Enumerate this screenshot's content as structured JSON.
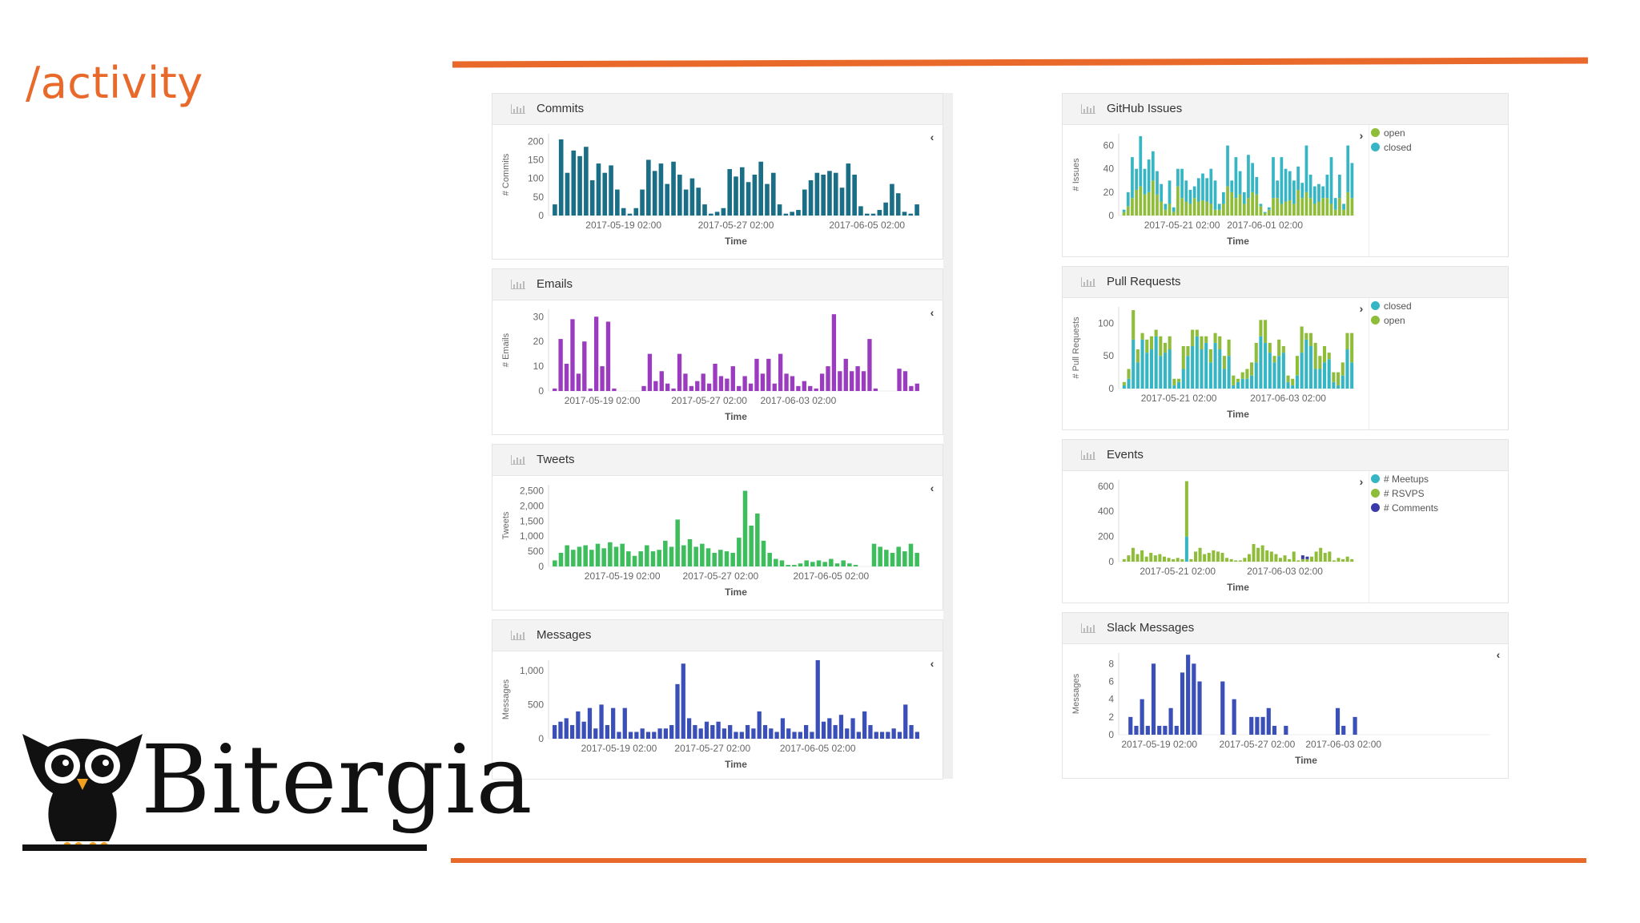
{
  "slide": {
    "title": "/activity",
    "brand": "Bitergia"
  },
  "colors": {
    "accent": "#e8692a",
    "commits": "#1a6e86",
    "emails": "#9b3cc0",
    "tweets": "#3dbd5c",
    "messages": "#3a4fb8",
    "open": "#8fbd3a",
    "closed": "#36b6c4",
    "meetups": "#36b6c4",
    "rsvps": "#8fbd3a",
    "comments": "#3a3aa8",
    "slack": "#3a4fb8"
  },
  "panels": {
    "commits": {
      "title": "Commits",
      "toggle": "‹",
      "icon": "bar-chart-icon"
    },
    "emails": {
      "title": "Emails",
      "toggle": "‹",
      "icon": "bar-chart-icon"
    },
    "tweets": {
      "title": "Tweets",
      "toggle": "‹",
      "icon": "bar-chart-icon"
    },
    "messages": {
      "title": "Messages",
      "toggle": "‹",
      "icon": "bar-chart-icon"
    },
    "issues": {
      "title": "GitHub Issues",
      "toggle": "›",
      "icon": "bar-chart-icon",
      "legend": [
        "open",
        "closed"
      ]
    },
    "prs": {
      "title": "Pull Requests",
      "toggle": "›",
      "icon": "bar-chart-icon",
      "legend": [
        "closed",
        "open"
      ]
    },
    "events": {
      "title": "Events",
      "toggle": "›",
      "icon": "bar-chart-icon",
      "legend": [
        "# Meetups",
        "# RSVPS",
        "# Comments"
      ]
    },
    "slack": {
      "title": "Slack Messages",
      "toggle": "‹",
      "icon": "bar-chart-icon"
    }
  },
  "chart_data": [
    {
      "id": "commits",
      "type": "bar",
      "ylabel": "# Commits",
      "xlabel": "Time",
      "ylim": [
        0,
        220
      ],
      "yticks": [
        "0",
        "50",
        "100",
        "150",
        "200"
      ],
      "xticks": [
        {
          "label": "2017-05-19 02:00",
          "index": 11
        },
        {
          "label": "2017-05-27 02:00",
          "index": 29
        },
        {
          "label": "2017-06-05 02:00",
          "index": 50
        }
      ],
      "series": [
        {
          "name": "Commits",
          "color": "#1a6e86",
          "values": [
            30,
            205,
            115,
            175,
            160,
            185,
            95,
            140,
            115,
            135,
            70,
            20,
            5,
            20,
            70,
            150,
            120,
            140,
            85,
            145,
            110,
            70,
            100,
            75,
            30,
            5,
            10,
            20,
            125,
            105,
            130,
            90,
            110,
            145,
            85,
            115,
            30,
            5,
            10,
            15,
            70,
            95,
            115,
            110,
            120,
            115,
            75,
            140,
            110,
            25,
            5,
            5,
            15,
            35,
            85,
            60,
            10,
            5,
            30
          ]
        }
      ]
    },
    {
      "id": "emails",
      "type": "bar",
      "ylabel": "# Emails",
      "xlabel": "Time",
      "ylim": [
        0,
        33
      ],
      "yticks": [
        "0",
        "10",
        "20",
        "30"
      ],
      "xticks": [
        {
          "label": "2017-05-19 02:00",
          "index": 8
        },
        {
          "label": "2017-05-27 02:00",
          "index": 26
        },
        {
          "label": "2017-06-03 02:00",
          "index": 41
        }
      ],
      "series": [
        {
          "name": "Emails",
          "color": "#9b3cc0",
          "values": [
            1,
            21,
            11,
            29,
            7,
            20,
            1,
            30,
            10,
            28,
            1,
            0,
            0,
            0,
            0,
            2,
            15,
            4,
            8,
            3,
            1,
            15,
            7,
            2,
            4,
            7,
            3,
            11,
            6,
            5,
            10,
            2,
            6,
            3,
            13,
            7,
            13,
            3,
            15,
            7,
            6,
            2,
            4,
            2,
            1,
            7,
            10,
            31,
            8,
            13,
            8,
            10,
            8,
            21,
            1,
            0,
            0,
            0,
            9,
            8,
            2,
            3
          ]
        }
      ]
    },
    {
      "id": "tweets",
      "type": "bar",
      "ylabel": "Tweets",
      "xlabel": "Time",
      "ylim": [
        0,
        2700
      ],
      "yticks": [
        "0",
        "500",
        "1,000",
        "1,500",
        "2,000",
        "2,500"
      ],
      "xticks": [
        {
          "label": "2017-05-19 02:00",
          "index": 11
        },
        {
          "label": "2017-05-27 02:00",
          "index": 27
        },
        {
          "label": "2017-06-05 02:00",
          "index": 45
        }
      ],
      "series": [
        {
          "name": "Tweets",
          "color": "#3dbd5c",
          "values": [
            200,
            450,
            700,
            550,
            650,
            700,
            550,
            750,
            600,
            800,
            650,
            750,
            500,
            350,
            500,
            700,
            500,
            550,
            850,
            650,
            1550,
            700,
            900,
            650,
            750,
            600,
            450,
            550,
            500,
            450,
            950,
            2500,
            1350,
            1750,
            850,
            450,
            250,
            200,
            50,
            50,
            100,
            200,
            150,
            200,
            150,
            250,
            100,
            200,
            100,
            50,
            0,
            0,
            750,
            650,
            550,
            450,
            650,
            500,
            750,
            450
          ]
        }
      ]
    },
    {
      "id": "messages",
      "type": "bar",
      "ylabel": "Messages",
      "xlabel": "Time",
      "ylim": [
        0,
        1150
      ],
      "yticks": [
        "0",
        "500",
        "1,000"
      ],
      "xticks": [
        {
          "label": "2017-05-19 02:00",
          "index": 11
        },
        {
          "label": "2017-05-27 02:00",
          "index": 27
        },
        {
          "label": "2017-06-05 02:00",
          "index": 45
        }
      ],
      "series": [
        {
          "name": "Messages",
          "color": "#3a4fb8",
          "values": [
            200,
            250,
            300,
            200,
            400,
            250,
            450,
            150,
            500,
            200,
            450,
            100,
            450,
            100,
            100,
            150,
            100,
            100,
            150,
            150,
            200,
            800,
            1100,
            300,
            200,
            150,
            250,
            200,
            250,
            150,
            200,
            100,
            100,
            200,
            150,
            400,
            200,
            150,
            100,
            300,
            150,
            100,
            100,
            200,
            100,
            1150,
            250,
            300,
            200,
            350,
            150,
            300,
            100,
            400,
            200,
            100,
            100,
            100,
            150,
            100,
            500,
            200,
            100
          ]
        }
      ]
    },
    {
      "id": "issues",
      "type": "bar-stacked",
      "ylabel": "# Issues",
      "xlabel": "Time",
      "ylim": [
        0,
        70
      ],
      "yticks": [
        "0",
        "20",
        "40",
        "60"
      ],
      "xticks": [
        {
          "label": "2017-05-21 02:00",
          "index": 14
        },
        {
          "label": "2017-06-01 02:00",
          "index": 34
        }
      ],
      "series": [
        {
          "name": "open",
          "color": "#8fbd3a",
          "values": [
            3,
            8,
            15,
            22,
            25,
            18,
            20,
            30,
            18,
            12,
            5,
            10,
            3,
            25,
            15,
            12,
            10,
            15,
            12,
            13,
            12,
            10,
            5,
            5,
            10,
            25,
            20,
            15,
            18,
            10,
            15,
            20,
            18,
            8,
            2,
            5,
            15,
            15,
            10,
            12,
            13,
            10,
            22,
            15,
            20,
            15,
            10,
            12,
            15,
            15,
            10,
            5,
            15,
            5,
            20,
            15
          ]
        },
        {
          "name": "closed",
          "color": "#36b6c4",
          "values": [
            2,
            12,
            35,
            18,
            43,
            22,
            28,
            25,
            20,
            15,
            5,
            20,
            4,
            15,
            25,
            18,
            12,
            10,
            20,
            23,
            20,
            30,
            25,
            5,
            10,
            35,
            10,
            35,
            20,
            10,
            37,
            25,
            15,
            2,
            1,
            2,
            35,
            15,
            40,
            28,
            25,
            20,
            20,
            13,
            40,
            20,
            15,
            15,
            10,
            20,
            40,
            10,
            20,
            5,
            40,
            30
          ]
        }
      ]
    },
    {
      "id": "prs",
      "type": "bar-stacked",
      "ylabel": "# Pull Requests",
      "xlabel": "Time",
      "ylim": [
        0,
        125
      ],
      "yticks": [
        "0",
        "50",
        "100"
      ],
      "xticks": [
        {
          "label": "2017-05-21 02:00",
          "index": 12
        },
        {
          "label": "2017-06-03 02:00",
          "index": 36
        }
      ],
      "series": [
        {
          "name": "closed",
          "color": "#36b6c4",
          "values": [
            5,
            15,
            75,
            40,
            75,
            55,
            60,
            80,
            50,
            55,
            60,
            5,
            10,
            30,
            50,
            65,
            80,
            60,
            70,
            40,
            70,
            60,
            30,
            50,
            5,
            10,
            15,
            15,
            20,
            40,
            80,
            70,
            55,
            40,
            50,
            55,
            10,
            5,
            20,
            55,
            75,
            65,
            30,
            30,
            40,
            45,
            10,
            5,
            20,
            60,
            40
          ]
        },
        {
          "name": "open",
          "color": "#8fbd3a",
          "values": [
            5,
            15,
            45,
            20,
            10,
            20,
            20,
            10,
            30,
            15,
            20,
            10,
            5,
            35,
            15,
            25,
            10,
            20,
            10,
            20,
            15,
            20,
            20,
            25,
            15,
            5,
            10,
            15,
            20,
            30,
            25,
            35,
            15,
            10,
            25,
            10,
            10,
            10,
            30,
            40,
            10,
            20,
            40,
            20,
            25,
            10,
            15,
            20,
            20,
            25,
            45
          ]
        }
      ]
    },
    {
      "id": "events",
      "type": "bar-stacked",
      "ylabel": "",
      "xlabel": "Time",
      "ylim": [
        0,
        650
      ],
      "yticks": [
        "0",
        "200",
        "400",
        "600"
      ],
      "xticks": [
        {
          "label": "2017-05-21 02:00",
          "index": 12
        },
        {
          "label": "2017-06-03 02:00",
          "index": 36
        }
      ],
      "series": [
        {
          "name": "# Meetups",
          "color": "#36b6c4",
          "values": [
            0,
            0,
            0,
            0,
            0,
            0,
            0,
            0,
            0,
            0,
            0,
            0,
            0,
            0,
            200,
            0,
            0,
            0,
            0,
            0,
            0,
            0,
            0,
            0,
            0,
            0,
            0,
            0,
            0,
            0,
            0,
            0,
            0,
            0,
            0,
            0,
            0,
            0,
            0,
            0,
            0,
            0,
            0,
            0,
            0,
            0,
            0,
            0,
            0,
            0,
            0,
            0
          ]
        },
        {
          "name": "# RSVPS",
          "color": "#8fbd3a",
          "values": [
            20,
            50,
            110,
            60,
            90,
            40,
            70,
            50,
            60,
            40,
            30,
            20,
            30,
            20,
            440,
            20,
            80,
            110,
            60,
            70,
            90,
            80,
            70,
            30,
            20,
            10,
            10,
            30,
            60,
            140,
            110,
            130,
            90,
            80,
            60,
            30,
            50,
            20,
            80,
            10,
            20,
            20,
            40,
            80,
            110,
            70,
            80,
            10,
            30,
            20,
            40,
            20
          ]
        },
        {
          "name": "# Comments",
          "color": "#3a3aa8",
          "values": [
            0,
            0,
            0,
            0,
            0,
            0,
            0,
            0,
            0,
            0,
            0,
            0,
            0,
            0,
            0,
            0,
            0,
            0,
            0,
            0,
            0,
            0,
            0,
            0,
            0,
            0,
            0,
            0,
            0,
            0,
            0,
            0,
            0,
            0,
            0,
            0,
            0,
            0,
            0,
            0,
            30,
            20,
            0,
            0,
            0,
            0,
            0,
            0,
            0,
            0,
            0,
            0
          ]
        }
      ]
    },
    {
      "id": "slack",
      "type": "bar",
      "ylabel": "Messages",
      "xlabel": "Time",
      "ylim": [
        0,
        9.2
      ],
      "yticks": [
        "0",
        "2",
        "4",
        "6",
        "8"
      ],
      "xticks": [
        {
          "label": "2017-05-19 02:00",
          "index": 6
        },
        {
          "label": "2017-05-27 02:00",
          "index": 23
        },
        {
          "label": "2017-06-03 02:00",
          "index": 38
        }
      ],
      "series": [
        {
          "name": "Slack",
          "color": "#3a4fb8",
          "values": [
            0,
            2,
            1,
            4,
            1,
            8,
            1,
            1,
            3,
            1,
            7,
            9,
            8,
            6,
            0,
            0,
            0,
            6,
            0,
            4,
            0,
            0,
            2,
            2,
            2,
            3,
            1,
            0,
            1,
            0,
            0,
            0,
            0,
            0,
            0,
            0,
            0,
            3,
            1,
            0,
            2,
            0,
            0,
            0,
            0,
            0,
            0,
            0,
            0,
            0,
            0,
            0,
            0,
            0,
            0,
            0,
            0,
            0,
            0,
            0,
            0,
            0,
            0,
            0
          ]
        }
      ]
    }
  ]
}
